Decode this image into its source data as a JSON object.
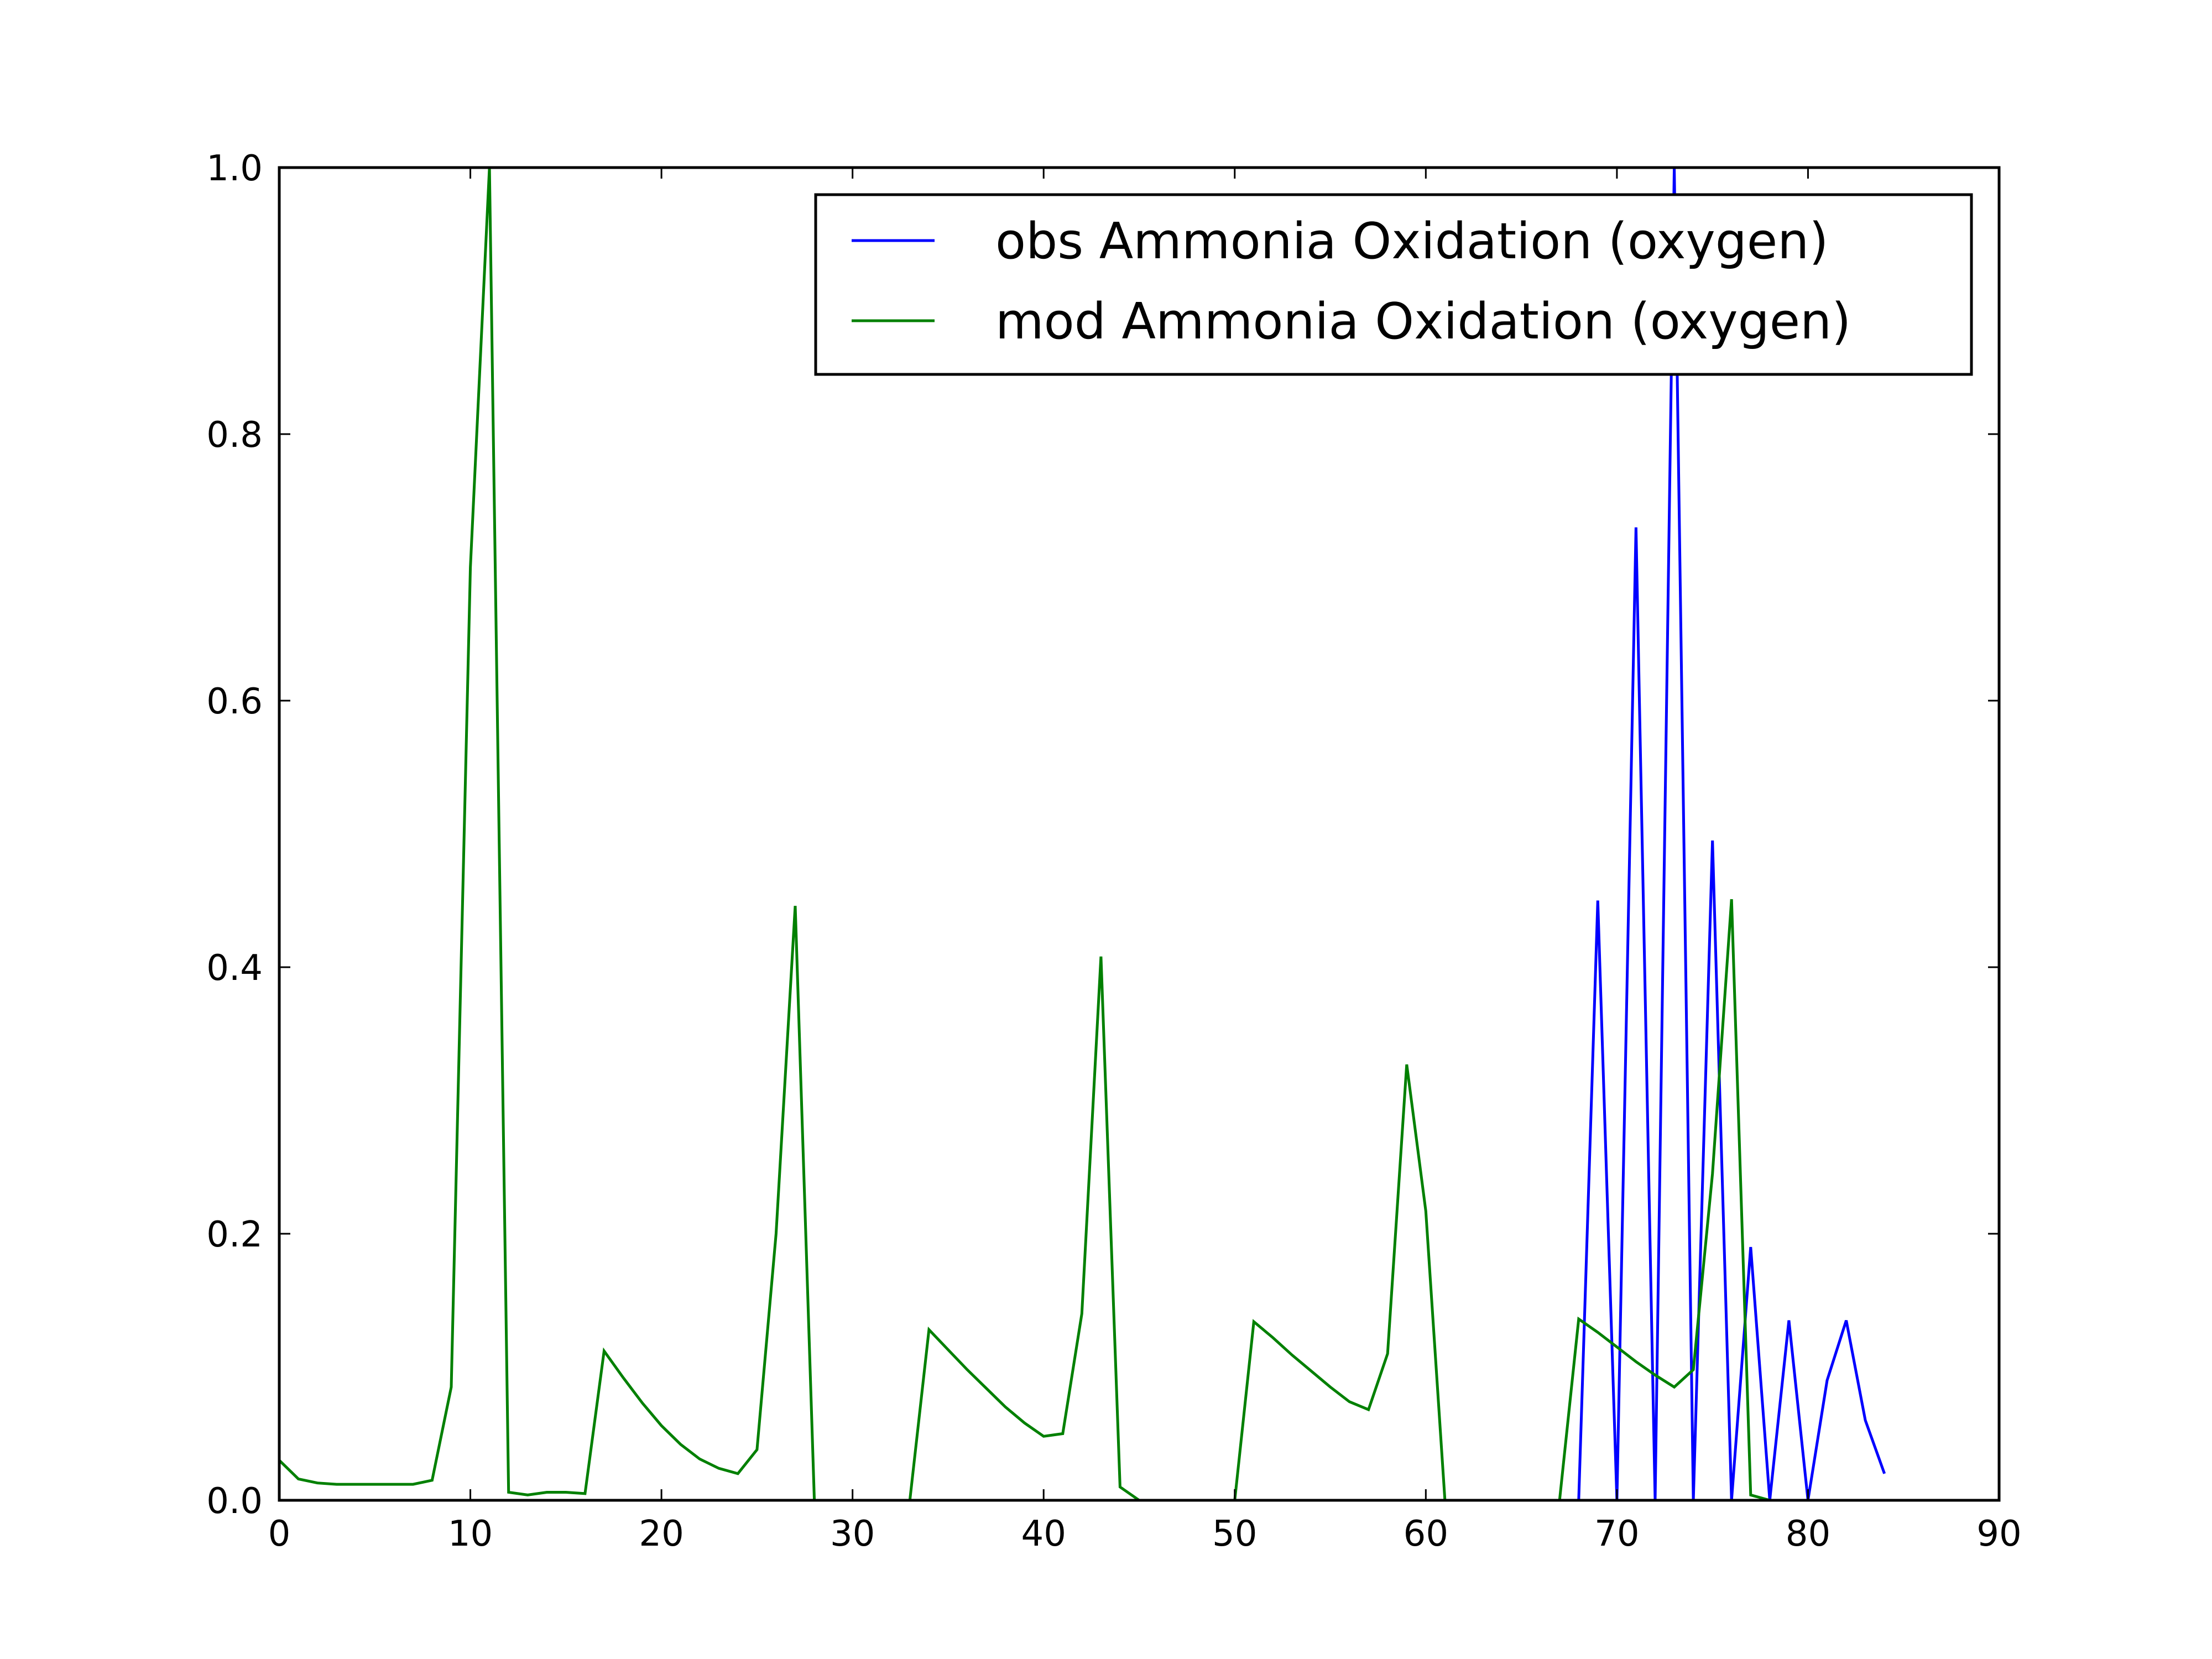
{
  "chart_data": {
    "type": "line",
    "xlim": [
      0,
      90
    ],
    "ylim": [
      0.0,
      1.0
    ],
    "grid": false,
    "legend_position": "top-right",
    "x_ticks": [
      0,
      10,
      20,
      30,
      40,
      50,
      60,
      70,
      80,
      90
    ],
    "x_tick_labels": [
      "0",
      "10",
      "20",
      "30",
      "40",
      "50",
      "60",
      "70",
      "80",
      "90"
    ],
    "y_ticks": [
      0.0,
      0.2,
      0.4,
      0.6,
      0.8,
      1.0
    ],
    "y_tick_labels": [
      "0.0",
      "0.2",
      "0.4",
      "0.6",
      "0.8",
      "1.0"
    ],
    "series": [
      {
        "name": "obs Ammonia Oxidation (oxygen)",
        "color": "#0000ff",
        "points": [
          [
            0,
            0
          ],
          [
            68,
            0
          ],
          [
            69,
            0.45
          ],
          [
            70,
            0
          ],
          [
            71,
            0.73
          ],
          [
            72,
            0
          ],
          [
            73,
            1.0
          ],
          [
            74,
            0
          ],
          [
            75,
            0.495
          ],
          [
            76,
            0
          ],
          [
            77,
            0.19
          ],
          [
            78,
            0
          ],
          [
            79,
            0.135
          ],
          [
            80,
            0
          ],
          [
            81,
            0.09
          ],
          [
            82,
            0.135
          ],
          [
            83,
            0.06
          ],
          [
            84,
            0.02
          ]
        ]
      },
      {
        "name": "mod Ammonia Oxidation (oxygen)",
        "color": "#008000",
        "points": [
          [
            0,
            0.03
          ],
          [
            1,
            0.016
          ],
          [
            2,
            0.013
          ],
          [
            3,
            0.012
          ],
          [
            4,
            0.012
          ],
          [
            5,
            0.012
          ],
          [
            6,
            0.012
          ],
          [
            7,
            0.012
          ],
          [
            8,
            0.015
          ],
          [
            9,
            0.085
          ],
          [
            10,
            0.7
          ],
          [
            11,
            1.0
          ],
          [
            12,
            0.006
          ],
          [
            13,
            0.004
          ],
          [
            14,
            0.006
          ],
          [
            15,
            0.006
          ],
          [
            16,
            0.005
          ],
          [
            17,
            0.112
          ],
          [
            18,
            0.092
          ],
          [
            19,
            0.073
          ],
          [
            20,
            0.056
          ],
          [
            21,
            0.042
          ],
          [
            22,
            0.031
          ],
          [
            23,
            0.024
          ],
          [
            24,
            0.02
          ],
          [
            25,
            0.038
          ],
          [
            26,
            0.2
          ],
          [
            27,
            0.446
          ],
          [
            28,
            0
          ],
          [
            29,
            0
          ],
          [
            30,
            0
          ],
          [
            31,
            0
          ],
          [
            32,
            0
          ],
          [
            33,
            0
          ],
          [
            34,
            0.128
          ],
          [
            35,
            0.113
          ],
          [
            36,
            0.098
          ],
          [
            37,
            0.084
          ],
          [
            38,
            0.07
          ],
          [
            39,
            0.058
          ],
          [
            40,
            0.048
          ],
          [
            41,
            0.05
          ],
          [
            42,
            0.14
          ],
          [
            43,
            0.408
          ],
          [
            44,
            0.01
          ],
          [
            45,
            0
          ],
          [
            46,
            0
          ],
          [
            47,
            0
          ],
          [
            48,
            0
          ],
          [
            49,
            0
          ],
          [
            50,
            0
          ],
          [
            51,
            0.134
          ],
          [
            52,
            0.122
          ],
          [
            53,
            0.109
          ],
          [
            54,
            0.097
          ],
          [
            55,
            0.085
          ],
          [
            56,
            0.074
          ],
          [
            57,
            0.068
          ],
          [
            58,
            0.11
          ],
          [
            59,
            0.327
          ],
          [
            60,
            0.217
          ],
          [
            61,
            0
          ],
          [
            62,
            0
          ],
          [
            63,
            0
          ],
          [
            64,
            0
          ],
          [
            65,
            0
          ],
          [
            66,
            0
          ],
          [
            67,
            0
          ],
          [
            68,
            0.136
          ],
          [
            69,
            0.126
          ],
          [
            70,
            0.115
          ],
          [
            71,
            0.104
          ],
          [
            72,
            0.094
          ],
          [
            73,
            0.085
          ],
          [
            74,
            0.098
          ],
          [
            75,
            0.245
          ],
          [
            76,
            0.451
          ],
          [
            77,
            0.004
          ],
          [
            78,
            0
          ]
        ]
      }
    ]
  }
}
